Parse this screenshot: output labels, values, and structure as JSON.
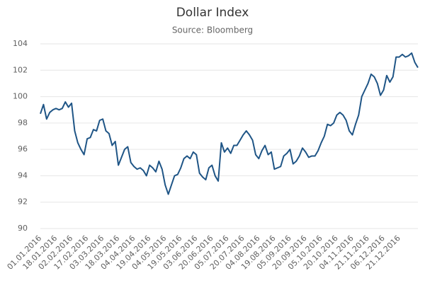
{
  "chart_data": {
    "type": "line",
    "title": "Dollar Index",
    "subtitle": "Source: Bloomberg",
    "categories": [
      "01.01.2016",
      null,
      null,
      null,
      null,
      "18.01.2016",
      null,
      null,
      null,
      null,
      "02.02.2016",
      null,
      null,
      null,
      null,
      "17.02.2016",
      null,
      null,
      null,
      null,
      "03.03.2016",
      null,
      null,
      null,
      null,
      "18.03.2016",
      null,
      null,
      null,
      null,
      "04.04.2016",
      null,
      null,
      null,
      null,
      "19.04.2016",
      null,
      null,
      null,
      null,
      "04.05.2016",
      null,
      null,
      null,
      null,
      "19.05.2016",
      null,
      null,
      null,
      null,
      "03.06.2016",
      null,
      null,
      null,
      null,
      "20.06.2016",
      null,
      null,
      null,
      null,
      "05.07.2016",
      null,
      null,
      null,
      null,
      "20.07.2016",
      null,
      null,
      null,
      null,
      "04.08.2016",
      null,
      null,
      null,
      null,
      "19.08.2016",
      null,
      null,
      null,
      null,
      "05.09.2016",
      null,
      null,
      null,
      null,
      "20.09.2016",
      null,
      null,
      null,
      null,
      "05.10.2016",
      null,
      null,
      null,
      null,
      "20.10.2016",
      null,
      null,
      null,
      null,
      "04.11.2016",
      null,
      null,
      null,
      null,
      "21.11.2016",
      null,
      null,
      null,
      null,
      "06.12.2016",
      null,
      null,
      null,
      null,
      "21.12.2016",
      null,
      null,
      null,
      null,
      null,
      null
    ],
    "series": [
      {
        "name": "Dollar Index",
        "color": "#1f5586",
        "values": [
          98.7,
          99.4,
          98.3,
          98.8,
          99.0,
          99.1,
          99.0,
          99.1,
          99.6,
          99.2,
          99.5,
          97.4,
          96.5,
          96.0,
          95.6,
          96.8,
          96.9,
          97.5,
          97.4,
          98.2,
          98.3,
          97.4,
          97.2,
          96.3,
          96.6,
          94.8,
          95.4,
          96.0,
          96.2,
          95.0,
          94.7,
          94.5,
          94.6,
          94.4,
          94.0,
          94.8,
          94.6,
          94.3,
          95.1,
          94.5,
          93.3,
          92.6,
          93.3,
          94.0,
          94.1,
          94.6,
          95.3,
          95.5,
          95.3,
          95.8,
          95.6,
          94.2,
          93.9,
          93.7,
          94.6,
          94.8,
          94.0,
          93.6,
          96.5,
          95.8,
          96.1,
          95.7,
          96.3,
          96.3,
          96.7,
          97.1,
          97.4,
          97.1,
          96.7,
          95.6,
          95.3,
          95.9,
          96.3,
          95.6,
          95.8,
          94.5,
          94.6,
          94.7,
          95.5,
          95.7,
          96.0,
          94.9,
          95.1,
          95.5,
          96.1,
          95.8,
          95.4,
          95.5,
          95.5,
          95.9,
          96.5,
          97.0,
          97.9,
          97.8,
          98.0,
          98.6,
          98.8,
          98.6,
          98.2,
          97.4,
          97.1,
          97.9,
          98.6,
          100.0,
          100.5,
          101.0,
          101.7,
          101.5,
          101.0,
          100.1,
          100.5,
          101.6,
          101.1,
          101.5,
          103.0,
          103.0,
          103.2,
          103.0,
          103.1,
          103.3,
          102.6,
          102.2
        ]
      }
    ],
    "ylim": [
      90,
      104
    ],
    "yticks": [
      90,
      92,
      94,
      96,
      98,
      100,
      102,
      104
    ],
    "grid": true
  }
}
